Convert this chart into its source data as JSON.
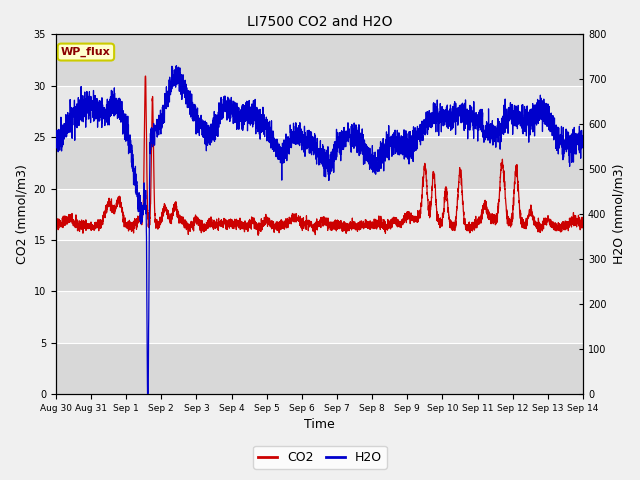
{
  "title": "LI7500 CO2 and H2O",
  "xlabel": "Time",
  "ylabel_left": "CO2 (mmol/m3)",
  "ylabel_right": "H2O (mmol/m3)",
  "ylim_left": [
    0,
    35
  ],
  "ylim_right": [
    0,
    800
  ],
  "yticks_left": [
    0,
    5,
    10,
    15,
    20,
    25,
    30,
    35
  ],
  "yticks_right": [
    0,
    100,
    200,
    300,
    400,
    500,
    600,
    700,
    800
  ],
  "co2_color": "#cc0000",
  "h2o_color": "#0000cc",
  "legend_label_co2": "CO2",
  "legend_label_h2o": "H2O",
  "annotation_text": "WP_flux",
  "annotation_bg": "#ffffcc",
  "annotation_border": "#cccc00",
  "n_days": 15,
  "seed": 42,
  "tick_labels": [
    "Aug 30",
    "Aug 31",
    "Sep 1",
    "Sep 2",
    "Sep 3",
    "Sep 4",
    "Sep 5",
    "Sep 6",
    "Sep 7",
    "Sep 8",
    "Sep 9",
    "Sep 10",
    "Sep 11",
    "Sep 12",
    "Sep 13",
    "Sep 14"
  ],
  "band_colors": [
    "#e8e8e8",
    "#d8d8d8"
  ],
  "figsize": [
    6.4,
    4.8
  ],
  "dpi": 100
}
